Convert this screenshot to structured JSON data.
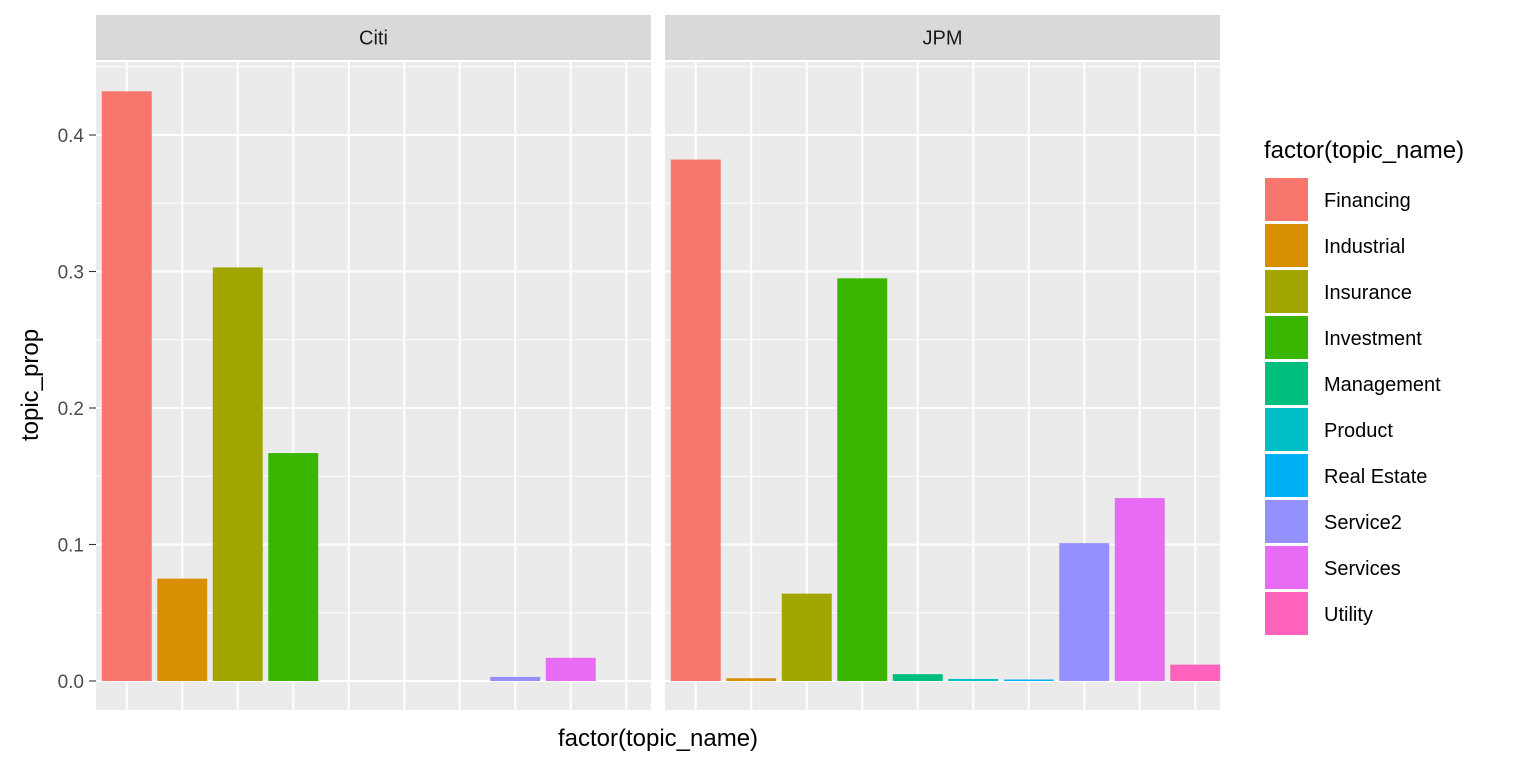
{
  "chart_data": {
    "type": "bar",
    "facet_by": "company",
    "facets": [
      "Citi",
      "JPM"
    ],
    "categories": [
      "Financing",
      "Industrial",
      "Insurance",
      "Investment",
      "Management",
      "Product",
      "Real Estate",
      "Service2",
      "Services",
      "Utility"
    ],
    "series": [
      {
        "name": "Citi",
        "values": [
          0.432,
          0.075,
          0.303,
          0.167,
          0,
          0,
          0,
          0.003,
          0.017,
          0
        ]
      },
      {
        "name": "JPM",
        "values": [
          0.382,
          0.002,
          0.064,
          0.295,
          0.005,
          0.0015,
          0.001,
          0.101,
          0.134,
          0.012
        ]
      }
    ],
    "colors": [
      "#F8766D",
      "#D89000",
      "#A3A500",
      "#39B600",
      "#00BF7D",
      "#00BFC4",
      "#00B0F6",
      "#9590FF",
      "#E76BF3",
      "#FF62BC"
    ],
    "xlabel": "factor(topic_name)",
    "ylabel": "topic_prop",
    "ylim": [
      0,
      0.45
    ],
    "yticks": [
      "0.0",
      "0.1",
      "0.2",
      "0.3",
      "0.4"
    ],
    "legend": {
      "title": "factor(topic_name)",
      "position": "right"
    },
    "grid": true,
    "panel_background": "#EBEBEB",
    "strip_background": "#D9D9D9"
  }
}
